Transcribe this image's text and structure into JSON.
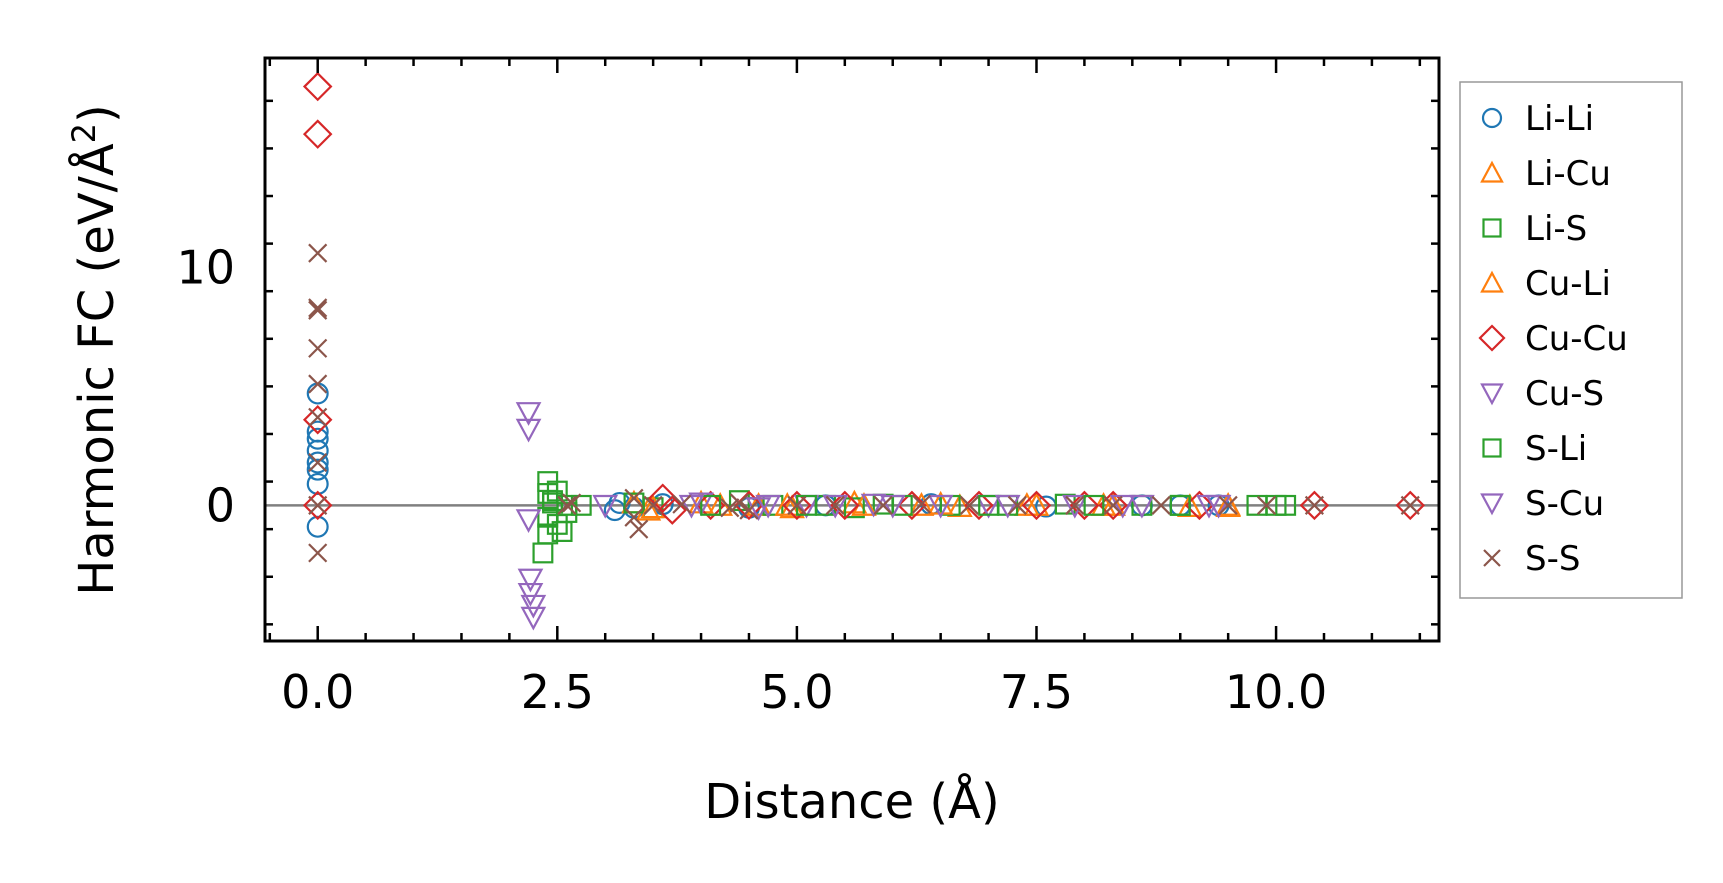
{
  "chart_data": {
    "type": "scatter",
    "xlabel": "Distance (Å)",
    "ylabel": "Harmonic FC (eV/Å²)",
    "ylabel_main": "Harmonic FC (eV/Å",
    "ylabel_sup": "2",
    "ylabel_close": ")",
    "xlim": [
      -0.55,
      11.7
    ],
    "ylim": [
      -5.7,
      18.8
    ],
    "x_major_ticks": [
      0,
      2.5,
      5,
      7.5,
      10
    ],
    "x_tick_labels": [
      "0.0",
      "2.5",
      "5.0",
      "7.5",
      "10.0"
    ],
    "y_major_ticks": [
      0,
      10
    ],
    "y_tick_labels": [
      "0",
      "10"
    ],
    "zero_line": 0,
    "legend_position": "outside-right",
    "series": [
      {
        "name": "Li-Li",
        "marker": "circle",
        "color": "#1f77b4",
        "points": [
          [
            0,
            -0.9
          ],
          [
            0,
            0.9
          ],
          [
            0,
            1.5
          ],
          [
            0,
            1.8
          ],
          [
            0,
            2.3
          ],
          [
            0,
            2.8
          ],
          [
            0,
            3.1
          ],
          [
            0,
            4.7
          ],
          [
            3.1,
            -0.2
          ],
          [
            3.15,
            0.1
          ],
          [
            3.3,
            -0.1
          ],
          [
            3.6,
            0.05
          ],
          [
            4.5,
            -0.1
          ],
          [
            5.3,
            0
          ],
          [
            6.4,
            0.05
          ],
          [
            7.6,
            -0.05
          ],
          [
            8.6,
            0
          ],
          [
            9.0,
            0
          ],
          [
            9.4,
            0
          ]
        ]
      },
      {
        "name": "Li-Cu",
        "marker": "triangle-up",
        "color": "#ff7f0e",
        "points": [
          [
            3.3,
            0.1
          ],
          [
            3.45,
            -0.2
          ],
          [
            4.0,
            0.1
          ],
          [
            4.6,
            0
          ],
          [
            4.95,
            -0.1
          ],
          [
            5.6,
            0.1
          ],
          [
            6.3,
            0
          ],
          [
            6.7,
            -0.05
          ],
          [
            7.4,
            0
          ],
          [
            8.2,
            0
          ],
          [
            9.1,
            -0.05
          ],
          [
            9.5,
            0
          ]
        ]
      },
      {
        "name": "Li-S",
        "marker": "square",
        "color": "#2ca02c",
        "points": [
          [
            2.35,
            -2.0
          ],
          [
            2.4,
            -1.2
          ],
          [
            2.4,
            -0.5
          ],
          [
            2.4,
            0.5
          ],
          [
            2.4,
            1.0
          ],
          [
            2.45,
            0.2
          ],
          [
            2.5,
            -0.8
          ],
          [
            2.5,
            0.6
          ],
          [
            2.55,
            -1.1
          ],
          [
            2.6,
            0
          ],
          [
            2.75,
            0
          ],
          [
            3.3,
            0.1
          ],
          [
            3.5,
            -0.1
          ],
          [
            4.4,
            0.2
          ],
          [
            4.75,
            0
          ],
          [
            5.3,
            0
          ],
          [
            5.6,
            -0.1
          ],
          [
            5.9,
            0.05
          ],
          [
            6.6,
            0
          ],
          [
            7.2,
            0
          ],
          [
            7.8,
            0.05
          ],
          [
            8.6,
            0
          ],
          [
            9.0,
            0
          ],
          [
            9.8,
            0
          ],
          [
            10.0,
            0
          ],
          [
            10.1,
            0
          ]
        ]
      },
      {
        "name": "Cu-Li",
        "marker": "triangle-up",
        "color": "#ff7f0e",
        "points": [
          [
            3.5,
            -0.1
          ],
          [
            4.2,
            0
          ],
          [
            4.9,
            0
          ],
          [
            5.7,
            0
          ],
          [
            6.5,
            0.05
          ],
          [
            7.5,
            0
          ],
          [
            8.3,
            0
          ],
          [
            9.5,
            -0.05
          ]
        ]
      },
      {
        "name": "Cu-Cu",
        "marker": "diamond",
        "color": "#d62728",
        "points": [
          [
            0,
            17.6
          ],
          [
            0,
            15.6
          ],
          [
            0,
            3.6
          ],
          [
            0,
            0
          ],
          [
            3.6,
            0.3
          ],
          [
            3.7,
            -0.2
          ],
          [
            4.1,
            0
          ],
          [
            4.5,
            0
          ],
          [
            5.0,
            0
          ],
          [
            5.5,
            0
          ],
          [
            6.2,
            0
          ],
          [
            6.9,
            0
          ],
          [
            7.5,
            0
          ],
          [
            8.0,
            0
          ],
          [
            8.3,
            0
          ],
          [
            9.2,
            0
          ],
          [
            10.4,
            0
          ],
          [
            11.4,
            0
          ]
        ]
      },
      {
        "name": "Cu-S",
        "marker": "triangle-down",
        "color": "#9467bd",
        "points": [
          [
            2.2,
            3.9
          ],
          [
            2.2,
            3.2
          ],
          [
            2.2,
            -0.6
          ],
          [
            2.22,
            -3.1
          ],
          [
            2.22,
            -3.7
          ],
          [
            2.25,
            -4.2
          ],
          [
            2.25,
            -4.7
          ],
          [
            3.0,
            0
          ],
          [
            4.0,
            0.1
          ],
          [
            4.6,
            -0.1
          ],
          [
            5.1,
            0
          ],
          [
            5.8,
            0.05
          ],
          [
            6.5,
            0
          ],
          [
            7.0,
            0
          ],
          [
            7.9,
            0
          ],
          [
            8.6,
            0
          ],
          [
            9.4,
            0
          ]
        ]
      },
      {
        "name": "S-Li",
        "marker": "square",
        "color": "#2ca02c",
        "points": [
          [
            2.45,
            0.1
          ],
          [
            2.6,
            -0.3
          ],
          [
            4.1,
            0
          ],
          [
            5.1,
            0
          ],
          [
            6.1,
            0
          ],
          [
            7.0,
            0
          ],
          [
            8.1,
            0
          ],
          [
            9.0,
            0
          ]
        ]
      },
      {
        "name": "S-Cu",
        "marker": "triangle-down",
        "color": "#9467bd",
        "points": [
          [
            3.9,
            0
          ],
          [
            4.7,
            0
          ],
          [
            5.4,
            0
          ],
          [
            6.0,
            0
          ],
          [
            7.2,
            0
          ],
          [
            8.4,
            0
          ],
          [
            9.3,
            0
          ]
        ]
      },
      {
        "name": "S-S",
        "marker": "x",
        "color": "#8c564b",
        "points": [
          [
            0,
            10.6
          ],
          [
            0,
            8.3
          ],
          [
            0,
            8.2
          ],
          [
            0,
            6.6
          ],
          [
            0,
            5.1
          ],
          [
            0,
            3.7
          ],
          [
            0,
            1.8
          ],
          [
            0,
            0
          ],
          [
            0,
            -2.0
          ],
          [
            2.6,
            0
          ],
          [
            2.65,
            0.1
          ],
          [
            3.3,
            -0.5
          ],
          [
            3.3,
            0.3
          ],
          [
            3.35,
            -1.0
          ],
          [
            3.5,
            0
          ],
          [
            3.8,
            0.05
          ],
          [
            4.3,
            -0.1
          ],
          [
            4.4,
            0.1
          ],
          [
            4.5,
            -0.2
          ],
          [
            5.0,
            0
          ],
          [
            5.4,
            0
          ],
          [
            5.9,
            0
          ],
          [
            6.3,
            0.05
          ],
          [
            6.8,
            0
          ],
          [
            7.3,
            0
          ],
          [
            7.9,
            0
          ],
          [
            8.3,
            0
          ],
          [
            8.8,
            0
          ],
          [
            9.5,
            0
          ],
          [
            9.9,
            0
          ],
          [
            10.4,
            0
          ],
          [
            11.4,
            0
          ]
        ]
      }
    ]
  }
}
